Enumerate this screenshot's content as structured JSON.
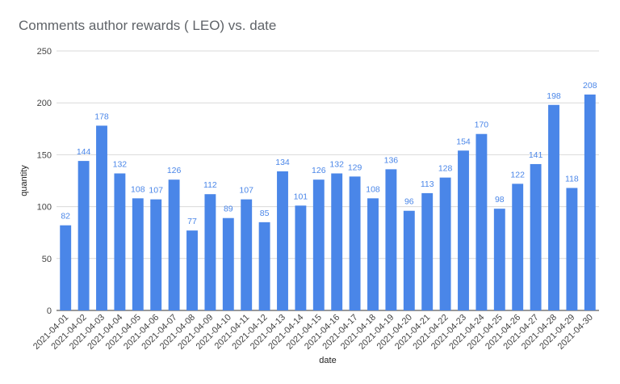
{
  "chart_data": {
    "type": "bar",
    "title": "Comments author rewards ( LEO) vs. date",
    "xlabel": "date",
    "ylabel": "quantity",
    "ylim": [
      0,
      250
    ],
    "yticks": [
      0,
      50,
      100,
      150,
      200,
      250
    ],
    "grid": true,
    "bar_color": "#4a86e8",
    "categories": [
      "2021-04-01",
      "2021-04-02",
      "2021-04-03",
      "2021-04-04",
      "2021-04-05",
      "2021-04-06",
      "2021-04-07",
      "2021-04-08",
      "2021-04-09",
      "2021-04-10",
      "2021-04-11",
      "2021-04-12",
      "2021-04-13",
      "2021-04-14",
      "2021-04-15",
      "2021-04-16",
      "2021-04-17",
      "2021-04-18",
      "2021-04-19",
      "2021-04-20",
      "2021-04-21",
      "2021-04-22",
      "2021-04-23",
      "2021-04-24",
      "2021-04-25",
      "2021-04-26",
      "2021-04-27",
      "2021-04-28",
      "2021-04-29",
      "2021-04-30"
    ],
    "values": [
      82,
      144,
      178,
      132,
      108,
      107,
      126,
      77,
      112,
      89,
      107,
      85,
      134,
      101,
      126,
      132,
      129,
      108,
      136,
      96,
      113,
      128,
      154,
      170,
      98,
      122,
      141,
      198,
      118,
      208
    ]
  }
}
